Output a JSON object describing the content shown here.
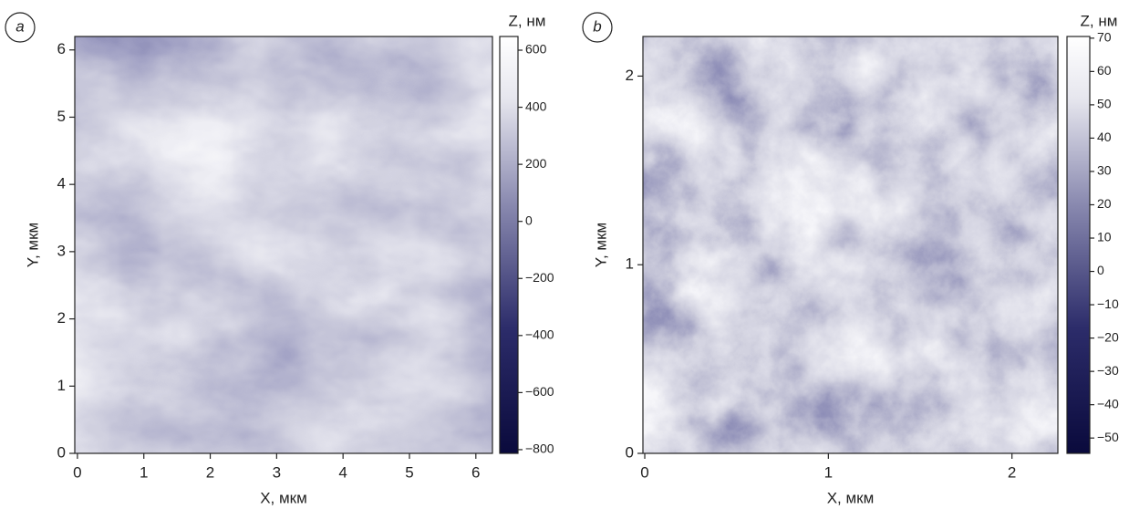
{
  "chart_data": [
    {
      "type": "heatmap",
      "panel": "a",
      "xlabel": "X, мкм",
      "ylabel": "Y, мкм",
      "colorbar_label": "Z, нм",
      "xlim": [
        -0.04,
        6.25
      ],
      "xticks": [
        0,
        1,
        2,
        3,
        4,
        5,
        6
      ],
      "ylim": [
        0,
        6.2
      ],
      "yticks": [
        0,
        1,
        2,
        3,
        4,
        5,
        6
      ],
      "zlim": [
        -813,
        648
      ],
      "zticks": [
        {
          "value": -800,
          "label": "−800"
        },
        {
          "value": -600,
          "label": "−600"
        },
        {
          "value": -400,
          "label": "−400"
        },
        {
          "value": -200,
          "label": "−200"
        },
        0,
        200,
        400,
        600
      ]
    },
    {
      "type": "heatmap",
      "panel": "b",
      "xlabel": "X, мкм",
      "ylabel": "Y, мкм",
      "colorbar_label": "Z, нм",
      "xlim": [
        -0.01,
        2.25
      ],
      "xticks": [
        0,
        1,
        2
      ],
      "ylim": [
        0,
        2.21
      ],
      "yticks": [
        0,
        1,
        2
      ],
      "zlim": [
        -54.6,
        70.5
      ],
      "zticks": [
        {
          "value": -50,
          "label": "−50"
        },
        {
          "value": -40,
          "label": "−40"
        },
        {
          "value": -30,
          "label": "−30"
        },
        {
          "value": -20,
          "label": "−20"
        },
        {
          "value": -10,
          "label": "−10"
        },
        0,
        10,
        20,
        30,
        40,
        50,
        60,
        70
      ]
    }
  ]
}
